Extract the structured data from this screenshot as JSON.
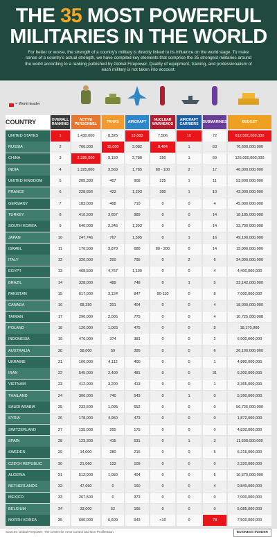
{
  "header": {
    "title_parts": [
      "THE",
      "35",
      "MOST POWERFUL",
      "MILITARIES IN THE WORLD"
    ],
    "intro": "For better or worse, the strength of a country's military is directly linked to its influence on the world stage. To make sense of a country's actual strength, we have compiled key elements that comprise the 35 strongest militaries around the world according to a ranking published by Global Firepower. Quality of equipment, training, and professionalism of each military is not taken into account."
  },
  "legend": "= World leader",
  "table": {
    "columns": [
      "COUNTRY",
      "OVERALL RANKING",
      "ACTIVE PERSONNEL",
      "TANKS",
      "AIRCRAFT",
      "NUCLEAR WARHEADS",
      "AIRCRAFT CARRIERS",
      "SUBMARINES",
      "BUDGET"
    ],
    "world_leader_cells": [
      [
        0,
        1
      ],
      [
        0,
        4
      ],
      [
        0,
        6
      ],
      [
        0,
        8
      ],
      [
        1,
        3
      ],
      [
        1,
        5
      ],
      [
        2,
        2
      ],
      [
        34,
        7
      ]
    ],
    "rows": [
      [
        "UNITED STATES",
        "1",
        "1,430,000",
        "8,325",
        "13,683",
        "7,506",
        "10",
        "72",
        "612,500,000,000"
      ],
      [
        "RUSSIA",
        "2",
        "766,000",
        "15,000",
        "3,082",
        "8,484",
        "1",
        "63",
        "76,600,000,000"
      ],
      [
        "CHINA",
        "3",
        "2,285,000",
        "9,150",
        "2,788",
        "250",
        "1",
        "69",
        "126,000,000,000"
      ],
      [
        "INDIA",
        "4",
        "1,325,000",
        "3,569",
        "1,785",
        "80 - 100",
        "2",
        "17",
        "46,000,000,000"
      ],
      [
        "UNITED KINGDOM",
        "5",
        "205,330",
        "407",
        "908",
        "225",
        "1",
        "11",
        "53,600,000,000"
      ],
      [
        "FRANCE",
        "6",
        "228,656",
        "423",
        "1,203",
        "300",
        "1",
        "10",
        "43,000,000,000"
      ],
      [
        "GERMANY",
        "7",
        "183,000",
        "408",
        "710",
        "0",
        "0",
        "4",
        "45,000,000,000"
      ],
      [
        "TURKEY",
        "8",
        "410,500",
        "3,657",
        "989",
        "0",
        "0",
        "14",
        "18,185,000,000"
      ],
      [
        "SOUTH KOREA",
        "9",
        "640,000",
        "2,346",
        "1,393",
        "0",
        "0",
        "14",
        "33,700,000,000"
      ],
      [
        "JAPAN",
        "10",
        "247,746",
        "767",
        "1,595",
        "0",
        "1",
        "16",
        "49,100,000,000"
      ],
      [
        "ISRAEL",
        "11",
        "176,500",
        "3,870",
        "680",
        "80 - 200",
        "0",
        "14",
        "15,000,000,000"
      ],
      [
        "ITALY",
        "12",
        "320,000",
        "200",
        "795",
        "0",
        "2",
        "6",
        "34,000,000,000"
      ],
      [
        "EGYPT",
        "13",
        "468,500",
        "4,767",
        "1,100",
        "0",
        "0",
        "4",
        "4,400,000,000"
      ],
      [
        "BRAZIL",
        "14",
        "328,000",
        "489",
        "748",
        "0",
        "1",
        "5",
        "33,142,000,000"
      ],
      [
        "PAKISTAN",
        "15",
        "617,000",
        "3,124",
        "847",
        "90-110",
        "0",
        "8",
        "7,000,000,000"
      ],
      [
        "CANADA",
        "16",
        "68,250",
        "201",
        "404",
        "0",
        "0",
        "4",
        "18,000,000,000"
      ],
      [
        "TAIWAN",
        "17",
        "290,000",
        "2,005",
        "775",
        "0",
        "0",
        "4",
        "10,725,000,000"
      ],
      [
        "POLAND",
        "18",
        "120,000",
        "1,063",
        "475",
        "0",
        "0",
        "5",
        "18,170,000"
      ],
      [
        "INDONESIA",
        "19",
        "476,000",
        "374",
        "381",
        "0",
        "0",
        "2",
        "6,900,000,000"
      ],
      [
        "AUSTRALIA",
        "20",
        "58,000",
        "59",
        "395",
        "0",
        "0",
        "6",
        "26,100,000,000"
      ],
      [
        "UKRAINE",
        "21",
        "160,000",
        "4,112",
        "400",
        "0",
        "0",
        "1",
        "4,880,000,000"
      ],
      [
        "IRAN",
        "22",
        "545,000",
        "2,409",
        "481",
        "0",
        "0",
        "31",
        "6,300,000,000"
      ],
      [
        "VIETNAM",
        "23",
        "412,000",
        "3,200",
        "413",
        "0",
        "0",
        "1",
        "3,365,000,000"
      ],
      [
        "THAILAND",
        "24",
        "306,000",
        "740",
        "543",
        "0",
        "1",
        "0",
        "5,390,000,000"
      ],
      [
        "SAUDI ARABIA",
        "25",
        "233,500",
        "1,095",
        "652",
        "0",
        "0",
        "0",
        "56,725,000,000"
      ],
      [
        "SYRIA",
        "26",
        "178,000",
        "4,950",
        "473",
        "0",
        "0",
        "0",
        "1,872,000,000"
      ],
      [
        "SWITZERLAND",
        "27",
        "135,000",
        "200",
        "175",
        "0",
        "0",
        "0",
        "4,830,000,000"
      ],
      [
        "SPAIN",
        "28",
        "123,300",
        "415",
        "531",
        "0",
        "1",
        "3",
        "11,600,000,000"
      ],
      [
        "SWEDEN",
        "29",
        "14,000",
        "280",
        "216",
        "0",
        "0",
        "5",
        "6,215,000,000"
      ],
      [
        "CZECH REPUBLIC",
        "30",
        "21,060",
        "123",
        "109",
        "0",
        "0",
        "0",
        "2,220,000,000"
      ],
      [
        "ALGERIA",
        "31",
        "512,000",
        "1,050",
        "404",
        "0",
        "0",
        "6",
        "10,570,000,000"
      ],
      [
        "NETHERLANDS",
        "32",
        "47,660",
        "0",
        "160",
        "0",
        "0",
        "4",
        "9,840,000,000"
      ],
      [
        "MEXICO",
        "33",
        "267,500",
        "0",
        "373",
        "0",
        "0",
        "0",
        "7,000,000,000"
      ],
      [
        "BELGIUM",
        "34",
        "33,000",
        "52",
        "166",
        "0",
        "0",
        "0",
        "5,085,000,000"
      ],
      [
        "NORTH KOREA",
        "35",
        "690,000",
        "6,600",
        "943",
        "<10",
        "0",
        "78",
        "7,500,000,000"
      ]
    ]
  },
  "footer": {
    "sources": "Sources: Global Firepower; The Center for Arms Control and Non-Proliferation",
    "brand": "BUSINESS INSIDER"
  }
}
